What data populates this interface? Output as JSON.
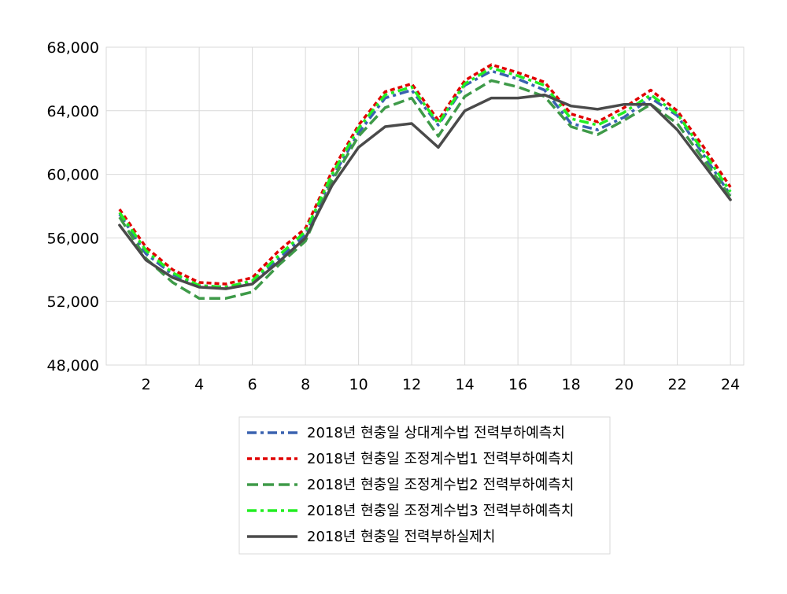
{
  "chart_data": {
    "type": "line",
    "x": [
      1,
      2,
      3,
      4,
      5,
      6,
      7,
      8,
      9,
      10,
      11,
      12,
      13,
      14,
      15,
      16,
      17,
      18,
      19,
      20,
      21,
      22,
      23,
      24
    ],
    "xticks": [
      "2",
      "4",
      "6",
      "8",
      "10",
      "12",
      "14",
      "16",
      "18",
      "20",
      "22",
      "24"
    ],
    "yticks": [
      "48,000",
      "52,000",
      "56,000",
      "60,000",
      "64,000",
      "68,000"
    ],
    "ylim": [
      48000,
      68000
    ],
    "xlim": [
      0.5,
      24.5
    ],
    "grid": true,
    "legend_position": "bottom",
    "title": "",
    "xlabel": "",
    "ylabel": "",
    "series": [
      {
        "name": "2018년 현충일 상대계수법 전력부하예측치",
        "color": "#3a62b0",
        "dash": "dash-dot",
        "values": [
          57500,
          55000,
          53700,
          53000,
          52900,
          53200,
          54700,
          56200,
          59800,
          62600,
          64800,
          65300,
          63100,
          65600,
          66500,
          66000,
          65300,
          63200,
          62800,
          63600,
          64800,
          63700,
          61200,
          58700
        ]
      },
      {
        "name": "2018년 현충일 조정계수법1 전력부하예측치",
        "color": "#e00000",
        "dash": "short-dash",
        "values": [
          57800,
          55400,
          54000,
          53200,
          53100,
          53500,
          55200,
          56600,
          60200,
          63100,
          65200,
          65700,
          63400,
          65900,
          66900,
          66400,
          65800,
          63800,
          63300,
          64200,
          65300,
          64000,
          61700,
          59200
        ]
      },
      {
        "name": "2018년 현충일 조정계수법2 전력부하예측치",
        "color": "#3e9a48",
        "dash": "long-dash",
        "values": [
          57300,
          54700,
          53200,
          52200,
          52200,
          52600,
          54300,
          55800,
          59600,
          62400,
          64200,
          64800,
          62400,
          64900,
          65900,
          65500,
          64900,
          63000,
          62500,
          63400,
          64400,
          63200,
          60900,
          58600
        ]
      },
      {
        "name": "2018년 현충일 조정계수법3 전력부하예측치",
        "color": "#22ee22",
        "dash": "dash-dot",
        "values": [
          57600,
          55200,
          53800,
          53000,
          52900,
          53300,
          54900,
          56400,
          60000,
          62900,
          65000,
          65500,
          63200,
          65700,
          66700,
          66200,
          65600,
          63500,
          63100,
          63900,
          65000,
          63800,
          61400,
          58900
        ]
      },
      {
        "name": "2018년 현충일 전력부하실제치",
        "color": "#4a4a4a",
        "dash": "solid",
        "values": [
          56800,
          54600,
          53500,
          52900,
          52800,
          53100,
          54500,
          56000,
          59300,
          61700,
          63000,
          63200,
          61700,
          64000,
          64800,
          64800,
          65000,
          64300,
          64100,
          64400,
          64400,
          62800,
          60600,
          58400
        ]
      }
    ]
  }
}
